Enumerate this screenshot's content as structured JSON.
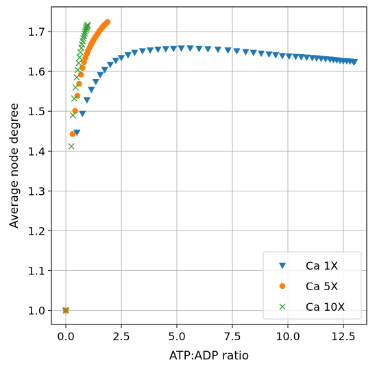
{
  "chart_data": {
    "type": "scatter",
    "xlabel": "ATP:ADP ratio",
    "ylabel": "Average node degree",
    "xlim": [
      -0.65,
      13.55
    ],
    "ylim": [
      0.965,
      1.762
    ],
    "xticks": [
      0.0,
      2.5,
      5.0,
      7.5,
      10.0,
      12.5
    ],
    "xtick_labels": [
      "0.0",
      "2.5",
      "5.0",
      "7.5",
      "10.0",
      "12.5"
    ],
    "yticks": [
      1.0,
      1.1,
      1.2,
      1.3,
      1.4,
      1.5,
      1.6,
      1.7
    ],
    "ytick_labels": [
      "1.0",
      "1.1",
      "1.2",
      "1.3",
      "1.4",
      "1.5",
      "1.6",
      "1.7"
    ],
    "grid": true,
    "legend_position": "bottom-right",
    "series": [
      {
        "name": "Ca 1X",
        "marker": "triangle-down",
        "color": "#1f77b4",
        "x": [
          0.0,
          0.5,
          0.75,
          0.95,
          1.15,
          1.35,
          1.55,
          1.75,
          2.0,
          2.25,
          2.5,
          2.8,
          3.1,
          3.45,
          3.8,
          4.15,
          4.5,
          4.85,
          5.2,
          5.6,
          6.0,
          6.4,
          6.85,
          7.3,
          7.7,
          8.1,
          8.45,
          8.8,
          9.15,
          9.45,
          9.75,
          10.05,
          10.35,
          10.6,
          10.85,
          11.1,
          11.3,
          11.5,
          11.7,
          11.9,
          12.05,
          12.2,
          12.35,
          12.5,
          12.65,
          12.8,
          12.95,
          13.0
        ],
        "y": [
          1.0,
          1.447,
          1.494,
          1.528,
          1.554,
          1.574,
          1.591,
          1.604,
          1.617,
          1.627,
          1.634,
          1.641,
          1.647,
          1.651,
          1.653,
          1.655,
          1.656,
          1.657,
          1.658,
          1.658,
          1.657,
          1.656,
          1.655,
          1.653,
          1.651,
          1.649,
          1.647,
          1.645,
          1.643,
          1.641,
          1.639,
          1.638,
          1.637,
          1.636,
          1.635,
          1.634,
          1.633,
          1.632,
          1.631,
          1.63,
          1.629,
          1.628,
          1.627,
          1.626,
          1.626,
          1.625,
          1.624,
          1.624
        ]
      },
      {
        "name": "Ca 5X",
        "marker": "circle",
        "color": "#ff7f0e",
        "x": [
          0.0,
          0.3,
          0.42,
          0.52,
          0.6,
          0.68,
          0.75,
          0.82,
          0.88,
          0.95,
          1.0,
          1.06,
          1.12,
          1.18,
          1.23,
          1.28,
          1.34,
          1.4,
          1.46,
          1.52,
          1.58,
          1.64,
          1.7,
          1.76,
          1.82,
          1.88
        ],
        "y": [
          1.0,
          1.443,
          1.501,
          1.539,
          1.569,
          1.592,
          1.609,
          1.623,
          1.634,
          1.644,
          1.652,
          1.659,
          1.666,
          1.672,
          1.677,
          1.682,
          1.687,
          1.692,
          1.697,
          1.702,
          1.706,
          1.711,
          1.715,
          1.718,
          1.721,
          1.724
        ]
      },
      {
        "name": "Ca 10X",
        "marker": "x",
        "color": "#2ca02c",
        "x": [
          0.0,
          0.25,
          0.32,
          0.38,
          0.44,
          0.49,
          0.54,
          0.58,
          0.62,
          0.66,
          0.7,
          0.73,
          0.76,
          0.79,
          0.82,
          0.85,
          0.87,
          0.9,
          0.92,
          0.94,
          0.96,
          0.98
        ],
        "y": [
          1.0,
          1.412,
          1.49,
          1.532,
          1.56,
          1.585,
          1.604,
          1.621,
          1.635,
          1.648,
          1.659,
          1.668,
          1.676,
          1.683,
          1.689,
          1.695,
          1.7,
          1.704,
          1.708,
          1.711,
          1.714,
          1.717
        ]
      }
    ]
  }
}
